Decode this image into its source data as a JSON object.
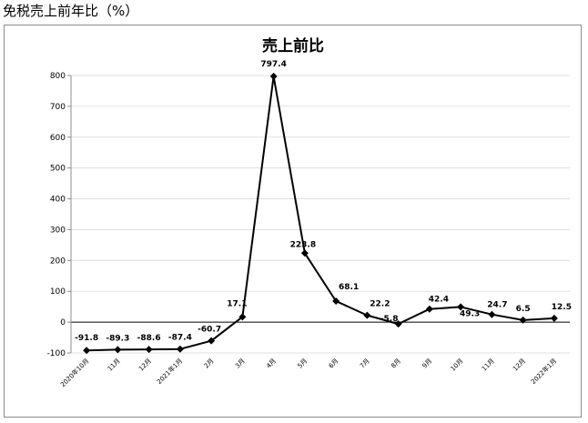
{
  "page": {
    "heading": "免税売上前年比（%）"
  },
  "chart_data": {
    "type": "line",
    "title": "売上前比",
    "xlabel": "",
    "ylabel": "",
    "categories": [
      "2020年10月",
      "11月",
      "12月",
      "2021年1月",
      "2月",
      "3月",
      "4月",
      "5月",
      "6月",
      "7月",
      "8月",
      "9月",
      "10月",
      "11月",
      "12月",
      "2022年1月"
    ],
    "series": [
      {
        "values": [
          -91.8,
          -89.3,
          -88.6,
          -87.4,
          -60.7,
          17.1,
          797.4,
          223.8,
          68.1,
          22.2,
          -5.8,
          42.4,
          49.3,
          24.7,
          6.5,
          12.5
        ],
        "labels": [
          "-91.8",
          "-89.3",
          "-88.6",
          "-87.4",
          "-60.7",
          "17.1",
          "797.4",
          "223.8",
          "68.1",
          "22.2",
          "-5.8",
          "42.4",
          "49.3",
          "24.7",
          "6.5",
          "12.5"
        ]
      }
    ],
    "yticks": [
      "-100",
      "0",
      "100",
      "200",
      "300",
      "400",
      "500",
      "600",
      "700",
      "800"
    ],
    "ylim": [
      -100,
      800
    ],
    "grid": true,
    "legend": "none",
    "colors": {
      "line": "#000000",
      "grid": "#d9d9d9",
      "frame": "#8c8c8c"
    }
  }
}
